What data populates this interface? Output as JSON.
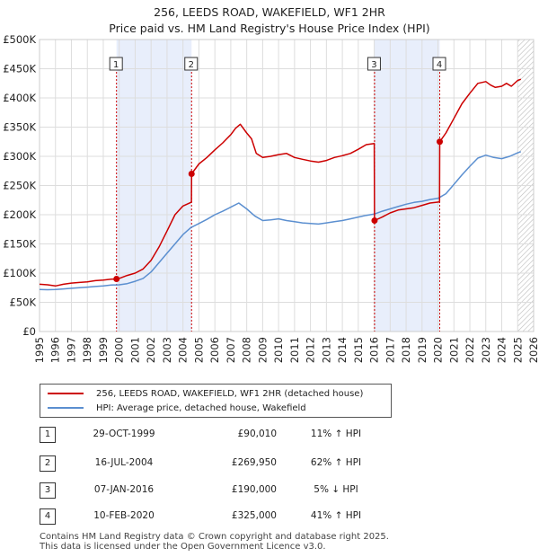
{
  "chart_data": {
    "type": "line",
    "title": "256, LEEDS ROAD, WAKEFIELD, WF1 2HR",
    "subtitle": "Price paid vs. HM Land Registry's House Price Index (HPI)",
    "xlim": [
      1995,
      2026
    ],
    "ylim": [
      0,
      500000
    ],
    "x_ticks": [
      1995,
      1996,
      1997,
      1998,
      1999,
      2000,
      2001,
      2002,
      2003,
      2004,
      2005,
      2006,
      2007,
      2008,
      2009,
      2010,
      2011,
      2012,
      2013,
      2014,
      2015,
      2016,
      2017,
      2018,
      2019,
      2020,
      2021,
      2022,
      2023,
      2024,
      2025,
      2026
    ],
    "y_ticks": [
      0,
      50000,
      100000,
      150000,
      200000,
      250000,
      300000,
      350000,
      400000,
      450000,
      500000
    ],
    "y_tick_labels": [
      "£0",
      "£50K",
      "£100K",
      "£150K",
      "£200K",
      "£250K",
      "£300K",
      "£350K",
      "£400K",
      "£450K",
      "£500K"
    ],
    "shaded_ranges": [
      [
        1999.83,
        2004.54
      ],
      [
        2016.02,
        2020.11
      ]
    ],
    "hatched_from": 2025.0,
    "series": [
      {
        "name": "256, LEEDS ROAD, WAKEFIELD, WF1 2HR (detached house)",
        "color": "#cc0000",
        "x": [
          1995,
          1995.5,
          1996,
          1996.5,
          1997,
          1997.5,
          1998,
          1998.5,
          1999,
          1999.5,
          1999.82,
          1999.83,
          2000,
          2000.5,
          2001,
          2001.5,
          2002,
          2002.5,
          2003,
          2003.5,
          2004,
          2004.5,
          2004.53,
          2004.54,
          2005,
          2005.5,
          2006,
          2006.5,
          2007,
          2007.3,
          2007.6,
          2008,
          2008.3,
          2008.6,
          2009,
          2009.5,
          2010,
          2010.5,
          2011,
          2011.5,
          2012,
          2012.5,
          2013,
          2013.5,
          2014,
          2014.5,
          2015,
          2015.5,
          2016.0,
          2016.02,
          2016.5,
          2017,
          2017.5,
          2018,
          2018.5,
          2019,
          2019.5,
          2020.1,
          2020.11,
          2020.5,
          2021,
          2021.5,
          2022,
          2022.5,
          2023,
          2023.3,
          2023.6,
          2024,
          2024.3,
          2024.6,
          2025.0,
          2025.2
        ],
        "values": [
          81000,
          80000,
          78000,
          81000,
          83000,
          84000,
          85000,
          87000,
          88000,
          89500,
          89800,
          90010,
          91000,
          96000,
          100000,
          107000,
          122000,
          145000,
          172000,
          200000,
          215000,
          221000,
          222000,
          269950,
          287000,
          298000,
          311000,
          323000,
          337000,
          348000,
          355000,
          340000,
          330000,
          305000,
          298000,
          300000,
          303000,
          305000,
          298000,
          295000,
          292000,
          290000,
          293000,
          298000,
          301000,
          305000,
          312000,
          320000,
          322000,
          190000,
          196000,
          203000,
          208000,
          210000,
          212000,
          216000,
          220000,
          222000,
          325000,
          340000,
          365000,
          390000,
          408000,
          425000,
          428000,
          422000,
          418000,
          420000,
          425000,
          420000,
          430000,
          432000
        ]
      },
      {
        "name": "HPI: Average price, detached house, Wakefield",
        "color": "#5b8fd0",
        "x": [
          1995,
          1995.5,
          1996,
          1996.5,
          1997,
          1997.5,
          1998,
          1998.5,
          1999,
          1999.5,
          2000,
          2000.5,
          2001,
          2001.5,
          2002,
          2002.5,
          2003,
          2003.5,
          2004,
          2004.5,
          2005,
          2005.5,
          2006,
          2006.5,
          2007,
          2007.5,
          2008,
          2008.5,
          2009,
          2009.5,
          2010,
          2010.5,
          2011,
          2011.5,
          2012,
          2012.5,
          2013,
          2013.5,
          2014,
          2014.5,
          2015,
          2015.5,
          2016,
          2016.5,
          2017,
          2017.5,
          2018,
          2018.5,
          2019,
          2019.5,
          2020,
          2020.5,
          2021,
          2021.5,
          2022,
          2022.5,
          2023,
          2023.5,
          2024,
          2024.5,
          2025,
          2025.2
        ],
        "values": [
          72000,
          71500,
          72000,
          73000,
          74000,
          75000,
          76000,
          77000,
          78000,
          79500,
          80000,
          82000,
          86000,
          91000,
          102000,
          118000,
          134000,
          150000,
          166000,
          178000,
          185000,
          192000,
          200000,
          206000,
          213000,
          220000,
          210000,
          198000,
          190000,
          191000,
          193000,
          190000,
          188000,
          186000,
          185000,
          184000,
          186000,
          188000,
          190000,
          193000,
          196000,
          199000,
          201000,
          206000,
          210000,
          214000,
          218000,
          221000,
          223000,
          226000,
          228000,
          236000,
          252000,
          268000,
          283000,
          297000,
          302000,
          298000,
          296000,
          300000,
          306000,
          308000
        ]
      }
    ],
    "sales": [
      {
        "label": "1",
        "x": 1999.83,
        "y": 90010
      },
      {
        "label": "2",
        "x": 2004.54,
        "y": 269950
      },
      {
        "label": "3",
        "x": 2016.02,
        "y": 190000
      },
      {
        "label": "4",
        "x": 2020.11,
        "y": 325000
      }
    ]
  },
  "legend": {
    "property_label": "256, LEEDS ROAD, WAKEFIELD, WF1 2HR (detached house)",
    "hpi_label": "HPI: Average price, detached house, Wakefield"
  },
  "sales_table": [
    {
      "num": "1",
      "date": "29-OCT-1999",
      "price": "£90,010",
      "hpi": "11% ↑ HPI"
    },
    {
      "num": "2",
      "date": "16-JUL-2004",
      "price": "£269,950",
      "hpi": "62% ↑ HPI"
    },
    {
      "num": "3",
      "date": "07-JAN-2016",
      "price": "£190,000",
      "hpi": "5% ↓ HPI"
    },
    {
      "num": "4",
      "date": "10-FEB-2020",
      "price": "£325,000",
      "hpi": "41% ↑ HPI"
    }
  ],
  "footer": {
    "line1": "Contains HM Land Registry data © Crown copyright and database right 2025.",
    "line2": "This data is licensed under the Open Government Licence v3.0."
  }
}
